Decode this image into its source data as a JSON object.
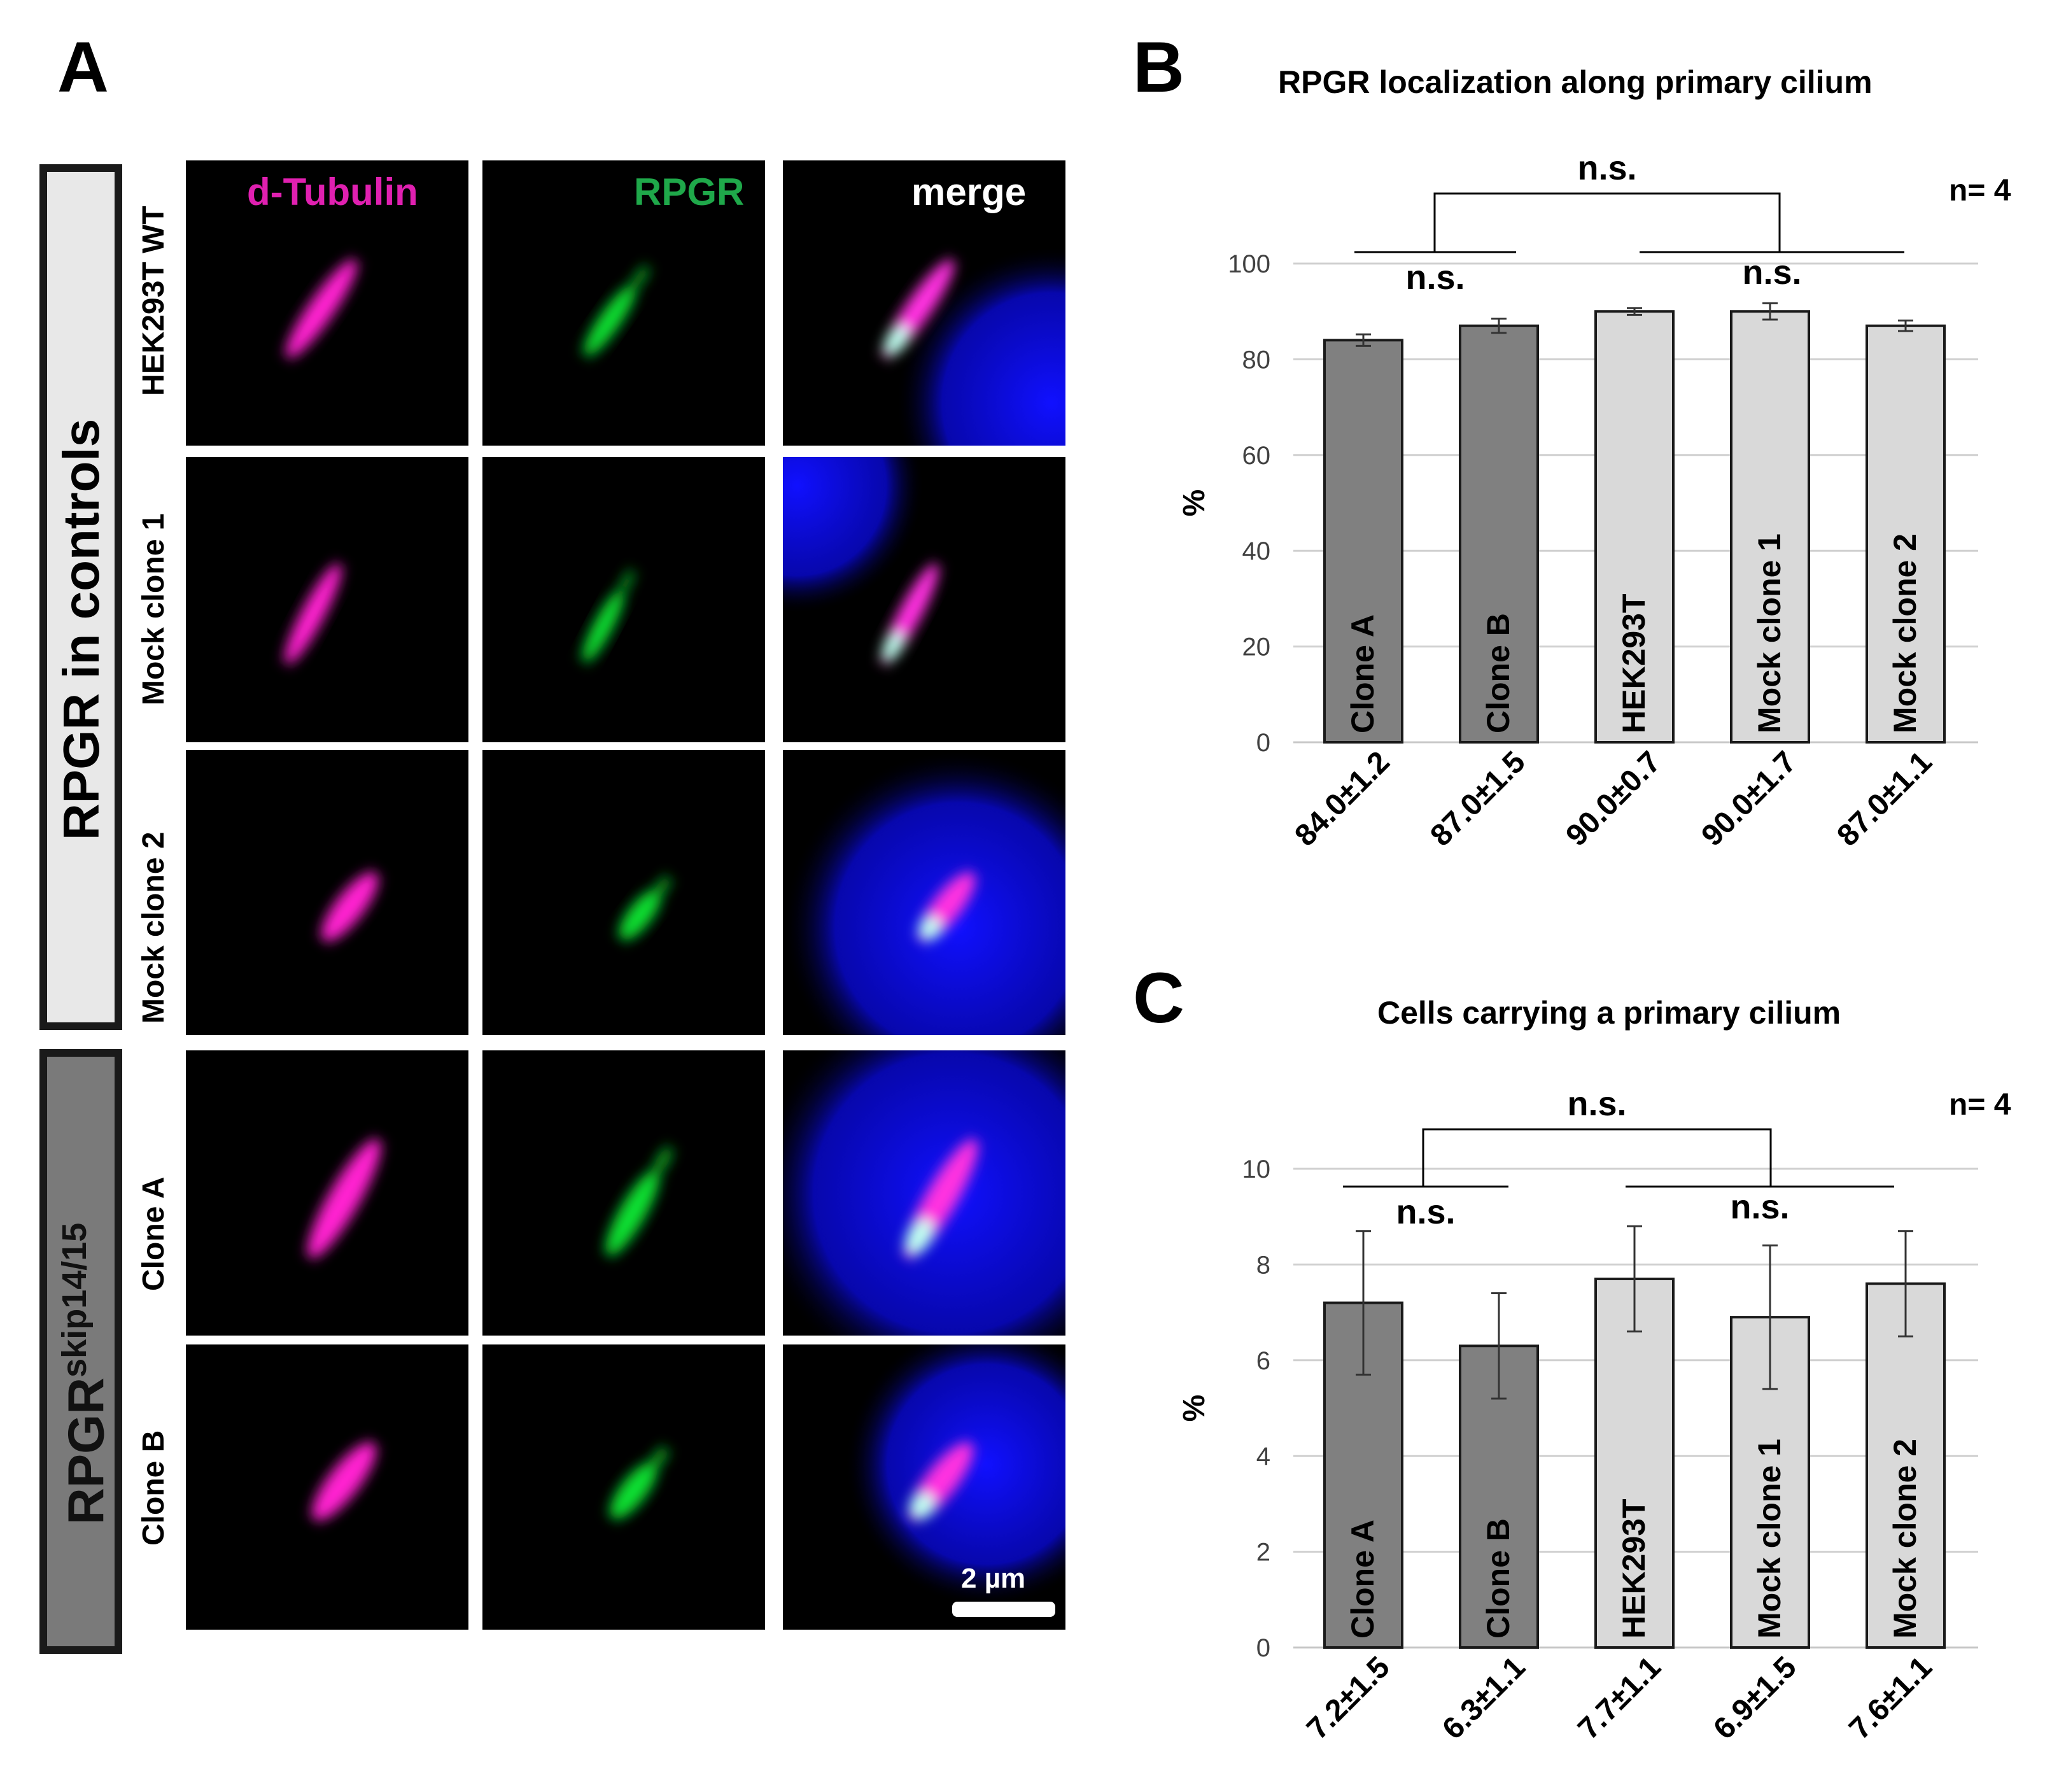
{
  "panels": {
    "a": "A",
    "b": "B",
    "c": "C"
  },
  "panel_a": {
    "channels": {
      "tubulin": {
        "label": "d-Tubulin",
        "color": "#e020b0"
      },
      "rpgr": {
        "label": "RPGR",
        "color": "#1fa84a"
      },
      "merge": {
        "label": "merge",
        "color": "#ffffff"
      }
    },
    "groups": {
      "controls": {
        "label": "RPGR in controls"
      },
      "skip": {
        "base": "RPGR",
        "sup": "skip14/15"
      }
    },
    "rows": [
      {
        "label": "HEK293T WT"
      },
      {
        "label": "Mock clone 1"
      },
      {
        "label": "Mock clone 2"
      },
      {
        "label": "Clone A"
      },
      {
        "label": "Clone B"
      }
    ],
    "scalebar": {
      "label": "2 µm"
    }
  },
  "chart_data": [
    {
      "type": "bar",
      "title": "RPGR localization along primary cilium",
      "ylabel": "%",
      "ylim": [
        0,
        100
      ],
      "yticks": [
        0,
        20,
        40,
        60,
        80,
        100
      ],
      "grid": true,
      "n_label": "n= 4",
      "categories": [
        "Clone A",
        "Clone B",
        "HEK293T",
        "Mock clone 1",
        "Mock clone 2"
      ],
      "values": [
        84.0,
        87.0,
        90.0,
        90.0,
        87.0
      ],
      "errors": [
        1.2,
        1.5,
        0.7,
        1.7,
        1.1
      ],
      "value_labels": [
        "84.0±1.2",
        "87.0±1.5",
        "90.0±0.7",
        "90.0±1.7",
        "87.0±1.1"
      ],
      "bar_colors": [
        "#808080",
        "#808080",
        "#d9d9d9",
        "#d9d9d9",
        "#d9d9d9"
      ],
      "significance": {
        "left": "n.s.",
        "right": "n.s.",
        "top": "n.s."
      }
    },
    {
      "type": "bar",
      "title": "Cells carrying a primary cilium",
      "ylabel": "%",
      "ylim": [
        0,
        10
      ],
      "yticks": [
        0,
        2,
        4,
        6,
        8,
        10
      ],
      "grid": true,
      "n_label": "n= 4",
      "categories": [
        "Clone A",
        "Clone B",
        "HEK293T",
        "Mock clone 1",
        "Mock clone 2"
      ],
      "values": [
        7.2,
        6.3,
        7.7,
        6.9,
        7.6
      ],
      "errors": [
        1.5,
        1.1,
        1.1,
        1.5,
        1.1
      ],
      "value_labels": [
        "7.2±1.5",
        "6.3±1.1",
        "7.7±1.1",
        "6.9±1.5",
        "7.6±1.1"
      ],
      "bar_colors": [
        "#808080",
        "#808080",
        "#d9d9d9",
        "#d9d9d9",
        "#d9d9d9"
      ],
      "significance": {
        "left": "n.s.",
        "right": "n.s.",
        "top": "n.s."
      }
    }
  ]
}
